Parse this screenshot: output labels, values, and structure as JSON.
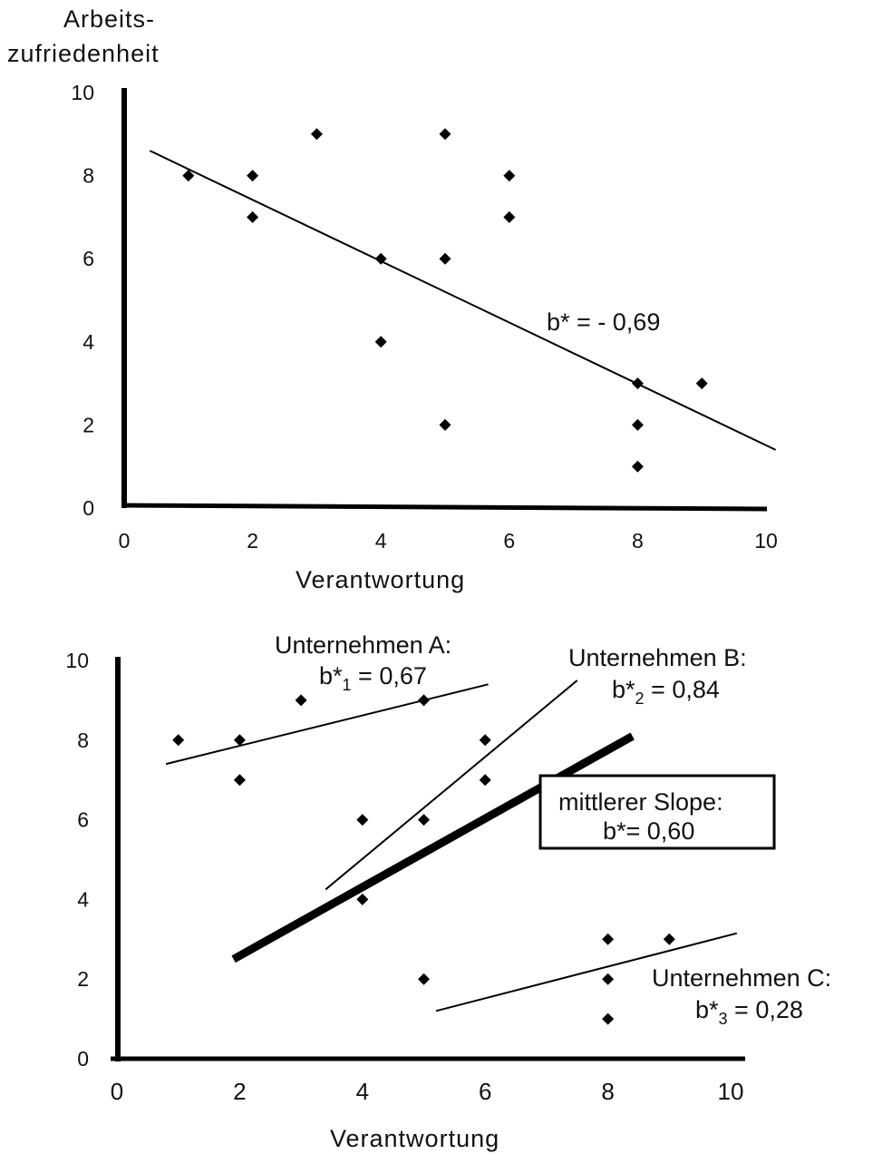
{
  "chart_data": [
    {
      "type": "scatter",
      "ylabel_line1": "Arbeits-",
      "ylabel_line2": "zufriedenheit",
      "xlabel": "Verantwortung",
      "xlim": [
        0,
        10
      ],
      "ylim": [
        0,
        10
      ],
      "x_ticks": [
        "0",
        "2",
        "4",
        "6",
        "8",
        "10"
      ],
      "y_ticks": [
        "0",
        "2",
        "4",
        "6",
        "8",
        "10"
      ],
      "points": [
        {
          "x": 1,
          "y": 8
        },
        {
          "x": 2,
          "y": 8
        },
        {
          "x": 2,
          "y": 7
        },
        {
          "x": 3,
          "y": 9
        },
        {
          "x": 4,
          "y": 6
        },
        {
          "x": 4,
          "y": 4
        },
        {
          "x": 5,
          "y": 9
        },
        {
          "x": 5,
          "y": 6
        },
        {
          "x": 5,
          "y": 2
        },
        {
          "x": 6,
          "y": 8
        },
        {
          "x": 6,
          "y": 7
        },
        {
          "x": 8,
          "y": 3
        },
        {
          "x": 8,
          "y": 2
        },
        {
          "x": 8,
          "y": 1
        },
        {
          "x": 9,
          "y": 3
        }
      ],
      "regression_lines": [
        {
          "x1": 0.4,
          "y1": 8.6,
          "x2": 10.15,
          "y2": 1.4
        }
      ],
      "annotation": "b*  = - 0,69"
    },
    {
      "type": "scatter",
      "xlabel": "Verantwortung",
      "xlim": [
        0,
        10
      ],
      "ylim": [
        0,
        10
      ],
      "x_ticks": [
        "0",
        "2",
        "4",
        "6",
        "8",
        "10"
      ],
      "y_ticks": [
        "0",
        "2",
        "4",
        "6",
        "8",
        "10"
      ],
      "points": [
        {
          "x": 1,
          "y": 8
        },
        {
          "x": 2,
          "y": 8
        },
        {
          "x": 2,
          "y": 7
        },
        {
          "x": 3,
          "y": 9
        },
        {
          "x": 4,
          "y": 6
        },
        {
          "x": 4,
          "y": 4
        },
        {
          "x": 5,
          "y": 9
        },
        {
          "x": 5,
          "y": 6
        },
        {
          "x": 5,
          "y": 2
        },
        {
          "x": 6,
          "y": 8
        },
        {
          "x": 6,
          "y": 7
        },
        {
          "x": 8,
          "y": 3
        },
        {
          "x": 8,
          "y": 2
        },
        {
          "x": 8,
          "y": 1
        },
        {
          "x": 9,
          "y": 3
        }
      ],
      "regression_lines": [
        {
          "name": "Unternehmen A",
          "x1": 0.8,
          "y1": 7.4,
          "x2": 6.05,
          "y2": 9.4,
          "weight": "thin"
        },
        {
          "name": "Unternehmen B",
          "x1": 3.4,
          "y1": 4.25,
          "x2": 7.5,
          "y2": 9.5,
          "weight": "thin"
        },
        {
          "name": "Unternehmen C",
          "x1": 5.2,
          "y1": 1.2,
          "x2": 10.1,
          "y2": 3.15,
          "weight": "thin"
        },
        {
          "name": "mittlerer Slope",
          "x1": 1.9,
          "y1": 2.5,
          "x2": 8.4,
          "y2": 8.1,
          "weight": "bold"
        }
      ],
      "labels": {
        "a_title": "Unternehmen A:",
        "a_b": "b*",
        "a_sub": "1",
        "a_val": " = 0,67",
        "b_title": "Unternehmen B:",
        "b_b": "b*",
        "b_sub": "2",
        "b_val": " = 0,84",
        "c_title": "Unternehmen C:",
        "c_b": "b*",
        "c_sub": "3",
        "c_val": " = 0,28",
        "mean_title": "mittlerer Slope:",
        "mean_val": "b*= 0,60"
      }
    }
  ]
}
